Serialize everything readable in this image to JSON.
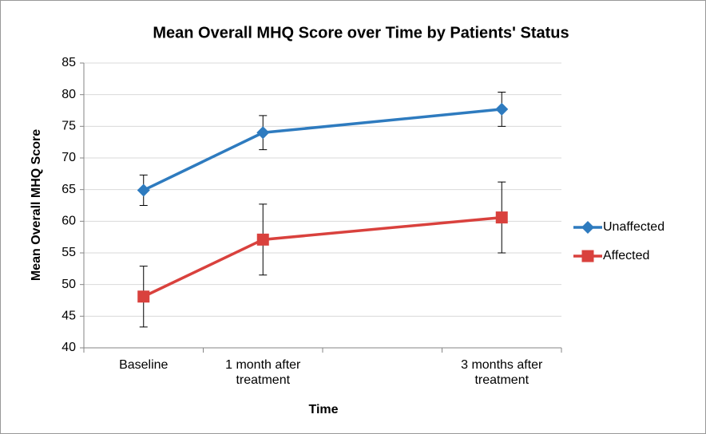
{
  "chart_data": {
    "type": "line",
    "title": "Mean Overall MHQ Score over Time by Patients' Status",
    "x_label": "Time",
    "y_label": "Mean Overall MHQ Score",
    "x": [
      0,
      1,
      3
    ],
    "xlim": [
      -0.5,
      3.5
    ],
    "xticks": [
      {
        "value": 0,
        "label": "Baseline"
      },
      {
        "value": 1,
        "label": "1 month after treatment"
      },
      {
        "value": 3,
        "label": "3 months after treatment"
      }
    ],
    "ylim": [
      40,
      85
    ],
    "yticks": [
      40,
      45,
      50,
      55,
      60,
      65,
      70,
      75,
      80,
      85
    ],
    "grid": true,
    "legend": "right",
    "series": [
      {
        "name": "Unaffected",
        "color": "#2e7bbf",
        "marker": "diamond",
        "values": [
          64.9,
          74.0,
          77.7
        ],
        "errors": [
          2.4,
          2.7,
          2.7
        ]
      },
      {
        "name": "Affected",
        "color": "#d9413d",
        "marker": "square",
        "values": [
          48.1,
          57.1,
          60.6
        ],
        "errors": [
          4.8,
          5.6,
          5.6
        ]
      }
    ]
  }
}
